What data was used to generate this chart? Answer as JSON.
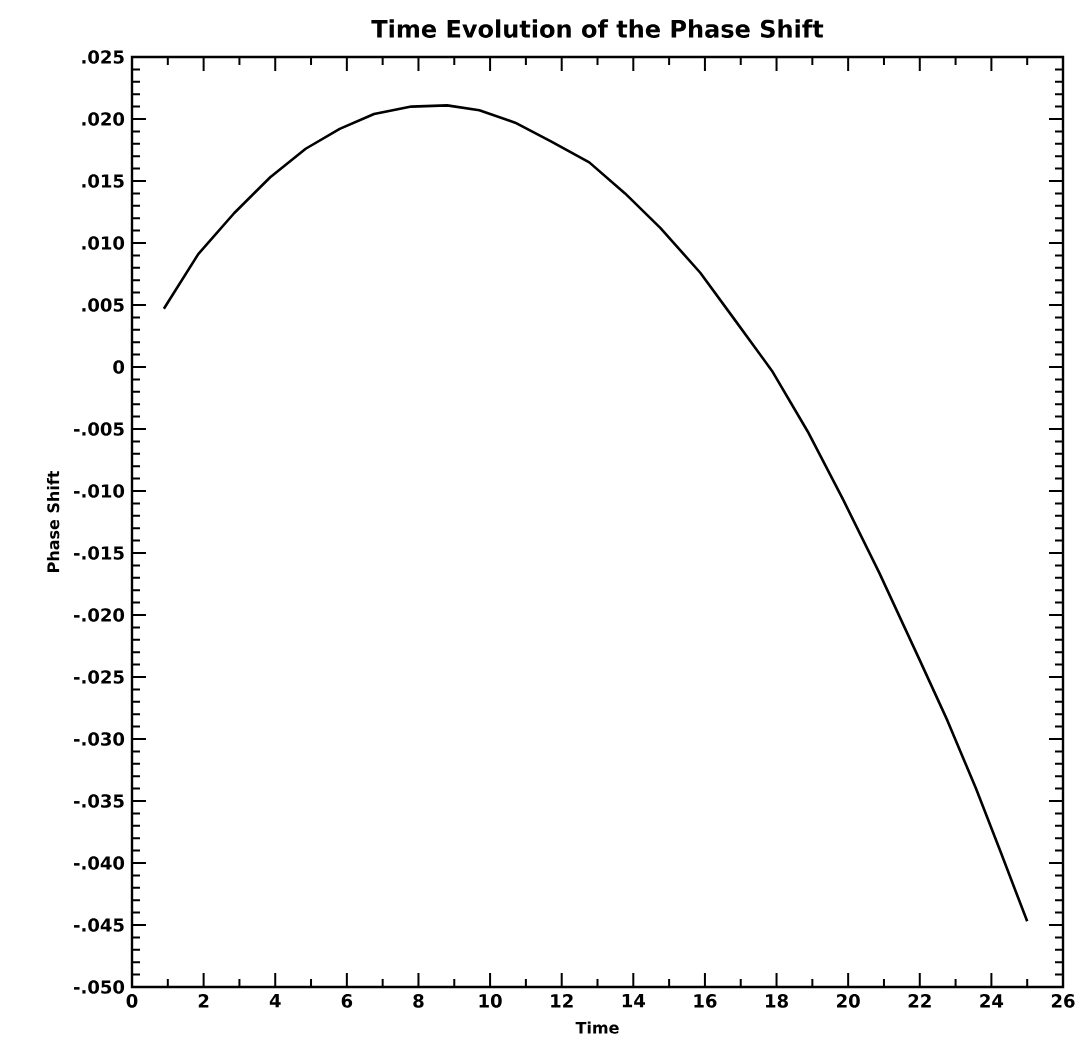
{
  "chart_data": {
    "type": "line",
    "title": "Time Evolution of the Phase Shift",
    "xlabel": "Time",
    "ylabel": "Phase Shift",
    "xlim": [
      0,
      26
    ],
    "ylim": [
      -0.05,
      0.025
    ],
    "xticks": [
      0,
      2,
      4,
      6,
      8,
      10,
      12,
      14,
      16,
      18,
      20,
      22,
      24,
      26
    ],
    "yticks": [
      {
        "value": -0.05,
        "label": "-.050"
      },
      {
        "value": -0.045,
        "label": "-.045"
      },
      {
        "value": -0.04,
        "label": "-.040"
      },
      {
        "value": -0.035,
        "label": "-.035"
      },
      {
        "value": -0.03,
        "label": "-.030"
      },
      {
        "value": -0.025,
        "label": "-.025"
      },
      {
        "value": -0.02,
        "label": "-.020"
      },
      {
        "value": -0.015,
        "label": "-.015"
      },
      {
        "value": -0.01,
        "label": "-.010"
      },
      {
        "value": -0.005,
        "label": "-.005"
      },
      0,
      {
        "value": 0.005,
        "label": ".005"
      },
      {
        "value": 0.01,
        "label": ".010"
      },
      {
        "value": 0.015,
        "label": ".015"
      },
      {
        "value": 0.02,
        "label": ".020"
      },
      {
        "value": 0.025,
        "label": ".025"
      }
    ],
    "series": [
      {
        "color": "#000000",
        "x": [
          0.89,
          1.85,
          2.85,
          3.86,
          4.85,
          5.8,
          6.76,
          7.8,
          8.8,
          9.7,
          10.7,
          11.7,
          12.77,
          13.77,
          14.76,
          15.87,
          16.86,
          17.87,
          18.87,
          19.86,
          20.87,
          21.96,
          22.77,
          23.57,
          24.27,
          25.0
        ],
        "values": [
          0.0047,
          0.0091,
          0.0124,
          0.0153,
          0.0176,
          0.0192,
          0.0204,
          0.021,
          0.0211,
          0.0207,
          0.0197,
          0.0182,
          0.0165,
          0.014,
          0.0112,
          0.0076,
          0.0037,
          -0.0003,
          -0.0052,
          -0.0107,
          -0.0166,
          -0.0234,
          -0.0285,
          -0.034,
          -0.0392,
          -0.0447
        ]
      }
    ]
  }
}
